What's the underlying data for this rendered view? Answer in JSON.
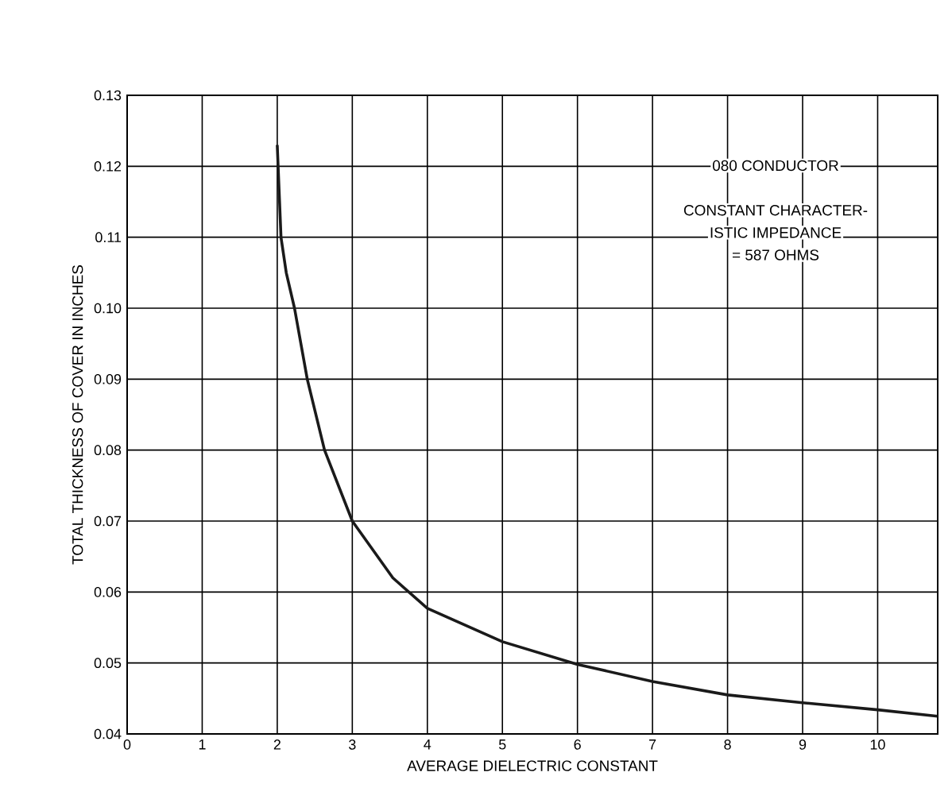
{
  "chart_data": {
    "type": "line",
    "xlabel": "AVERAGE DIELECTRIC CONSTANT",
    "ylabel": "TOTAL THICKNESS OF COVER IN INCHES",
    "annotations": [
      "080 CONDUCTOR",
      "CONSTANT CHARACTER-",
      "ISTIC IMPEDANCE",
      "= 587 OHMS"
    ],
    "x": [
      2,
      2.05,
      2.12,
      2.23,
      2.4,
      2.63,
      3.0,
      3.54,
      4,
      5,
      6,
      7,
      8,
      9,
      10,
      10.8
    ],
    "series": [
      {
        "color": "#1a1a1a",
        "values": [
          0.123,
          0.11,
          0.105,
          0.1,
          0.09,
          0.08,
          0.07,
          0.062,
          0.0577,
          0.053,
          0.0498,
          0.0474,
          0.0455,
          0.0444,
          0.0434,
          0.0425
        ]
      }
    ],
    "xlim": [
      0,
      10.8
    ],
    "ylim": [
      0.04,
      0.13
    ],
    "xticks": [
      0,
      1,
      2,
      3,
      4,
      5,
      6,
      7,
      8,
      9,
      10
    ],
    "yticks": [
      0.04,
      0.05,
      0.06,
      0.07,
      0.08,
      0.09,
      {
        "value": 0.1,
        "label": "0.10"
      },
      0.11,
      0.12,
      0.13
    ],
    "grid": true,
    "marker": "none",
    "line_style": "solid"
  }
}
